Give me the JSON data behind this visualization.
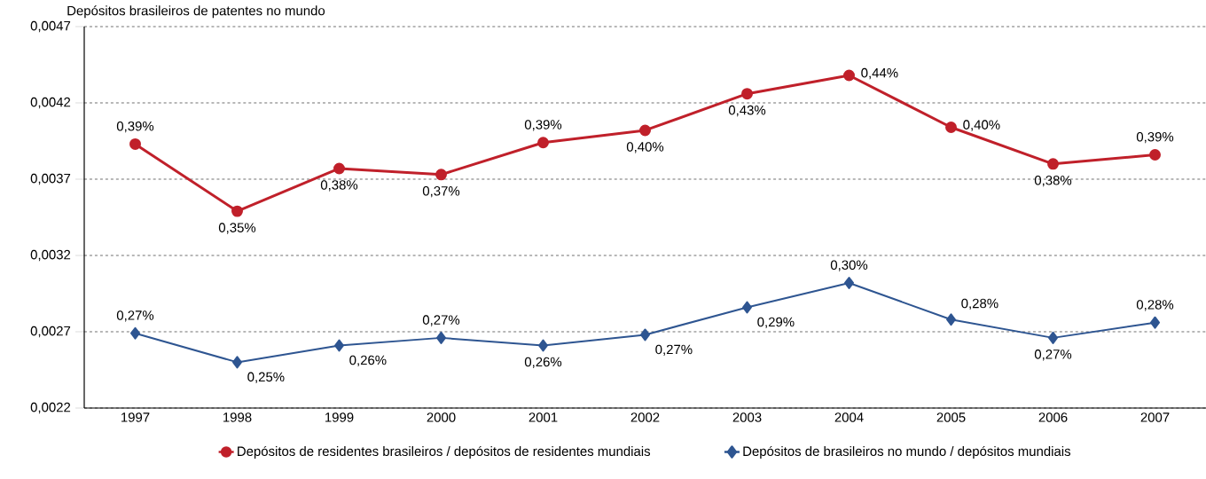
{
  "chart_data": {
    "type": "line",
    "title": "Depósitos brasileiros de patentes no mundo",
    "categories": [
      "1997",
      "1998",
      "1999",
      "2000",
      "2001",
      "2002",
      "2003",
      "2004",
      "2005",
      "2006",
      "2007"
    ],
    "series": [
      {
        "name": "Depósitos de residentes brasileiros / depósitos de residentes mundiais",
        "color": "#c0202a",
        "marker": "circle",
        "values": [
          0.00393,
          0.00349,
          0.00377,
          0.00373,
          0.00394,
          0.00402,
          0.00426,
          0.00438,
          0.00404,
          0.0038,
          0.00386
        ],
        "value_labels": [
          "0,39%",
          "0,35%",
          "0,38%",
          "0,37%",
          "0,39%",
          "0,40%",
          "0,43%",
          "0,44%",
          "0,40%",
          "0,38%",
          "0,39%"
        ]
      },
      {
        "name": "Depósitos de brasileiros no mundo / depósitos mundiais",
        "color": "#2e5591",
        "marker": "diamond",
        "values": [
          0.00269,
          0.0025,
          0.00261,
          0.00266,
          0.00261,
          0.00268,
          0.00286,
          0.00302,
          0.00278,
          0.00266,
          0.00276
        ],
        "value_labels": [
          "0,27%",
          "0,25%",
          "0,26%",
          "0,27%",
          "0,26%",
          "0,27%",
          "0,29%",
          "0,30%",
          "0,28%",
          "0,27%",
          "0,28%"
        ]
      }
    ],
    "ylim": [
      0.0022,
      0.0047
    ],
    "yticks": [
      {
        "value": 0.0022,
        "label": "0,0022"
      },
      {
        "value": 0.0027,
        "label": "0,0027"
      },
      {
        "value": 0.0032,
        "label": "0,0032"
      },
      {
        "value": 0.0037,
        "label": "0,0037"
      },
      {
        "value": 0.0042,
        "label": "0,0042"
      },
      {
        "value": 0.0047,
        "label": "0,0047"
      }
    ],
    "grid": "y",
    "legend": "bottom",
    "line_style": "solid"
  }
}
